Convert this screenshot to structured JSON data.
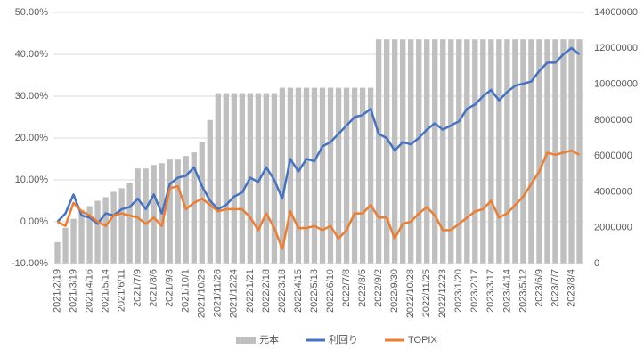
{
  "chart_data": {
    "type": "combo",
    "categories": [
      "2021/2/19",
      null,
      "2021/3/19",
      null,
      "2021/4/16",
      null,
      "2021/5/14",
      null,
      "2021/6/11",
      null,
      "2021/7/9",
      null,
      "2021/8/6",
      null,
      "2021/9/3",
      null,
      "2021/10/1",
      null,
      "2021/10/29",
      null,
      "2021/11/26",
      null,
      "2021/12/24",
      null,
      "2022/1/21",
      null,
      "2022/2/18",
      null,
      "2022/3/18",
      null,
      "2022/4/15",
      null,
      "2022/5/13",
      null,
      "2022/6/10",
      null,
      "2022/7/8",
      null,
      "2022/8/5",
      null,
      "2022/9/2",
      null,
      "2022/9/30",
      null,
      "2022/10/28",
      null,
      "2022/11/25",
      null,
      "2022/12/23",
      null,
      "2023/1/20",
      null,
      "2023/2/17",
      null,
      "2023/3/17",
      null,
      "2023/4/14",
      null,
      "2023/5/12",
      null,
      "2023/6/9",
      null,
      "2023/7/7",
      null,
      "2023/8/4",
      null
    ],
    "series": [
      {
        "name": "元本",
        "type": "bar",
        "axis": "y2",
        "color": "#bfbfbf",
        "values": [
          1200000,
          2000000,
          2500000,
          3000000,
          3200000,
          3500000,
          3700000,
          4000000,
          4200000,
          4500000,
          5300000,
          5300000,
          5500000,
          5600000,
          5800000,
          5800000,
          6000000,
          6200000,
          6800000,
          8000000,
          9500000,
          9500000,
          9500000,
          9500000,
          9500000,
          9500000,
          9500000,
          9500000,
          9800000,
          9800000,
          9800000,
          9800000,
          9800000,
          9800000,
          9800000,
          9800000,
          9800000,
          9800000,
          9800000,
          9800000,
          12500000,
          12500000,
          12500000,
          12500000,
          12500000,
          12500000,
          12500000,
          12500000,
          12500000,
          12500000,
          12500000,
          12500000,
          12500000,
          12500000,
          12500000,
          12500000,
          12500000,
          12500000,
          12500000,
          12500000,
          12500000,
          12500000,
          12500000,
          12500000,
          12500000,
          12500000
        ]
      },
      {
        "name": "利回り",
        "type": "line",
        "color": "#4472c4",
        "values": [
          0,
          2,
          6.5,
          1.5,
          1,
          -0.5,
          2,
          1.5,
          3,
          3.5,
          5.5,
          3,
          6.5,
          2,
          9,
          10.5,
          11,
          13,
          8.5,
          5,
          3,
          4,
          6,
          7,
          10.5,
          9.5,
          13,
          10,
          5.5,
          15,
          12,
          15,
          14.5,
          18,
          19,
          21,
          23,
          25,
          25.5,
          27,
          21,
          20,
          17,
          19,
          18.5,
          20,
          22,
          23.5,
          22,
          23,
          24,
          27,
          28,
          30,
          31.5,
          29,
          31,
          32.5,
          33,
          33.5,
          36,
          38,
          38,
          40,
          41.5,
          40
        ]
      },
      {
        "name": "TOPIX",
        "type": "line",
        "color": "#ed7d31",
        "values": [
          0,
          -1,
          4.5,
          2.5,
          1.5,
          0,
          -1,
          1.5,
          2,
          1.5,
          1,
          -0.5,
          1,
          -1,
          8,
          8.5,
          3,
          4.5,
          5.5,
          4,
          2.5,
          3,
          3,
          3,
          1,
          -2,
          2,
          -1.5,
          -6.5,
          2.5,
          -1.5,
          -1.5,
          -1,
          -2,
          -1,
          -4,
          -2,
          2,
          2,
          4,
          1,
          1,
          -4,
          -0.5,
          0,
          2,
          3.5,
          1.5,
          -2,
          -2,
          -0.5,
          1,
          2.5,
          3,
          5,
          1,
          2,
          4,
          6,
          9,
          12,
          16.5,
          16,
          16.5,
          17,
          16
        ]
      }
    ],
    "ylim": [
      -10,
      50
    ],
    "yticks": [
      {
        "value": -10,
        "label": "-10.00%"
      },
      {
        "value": 0,
        "label": "0.00%"
      },
      {
        "value": 10,
        "label": "10.00%"
      },
      {
        "value": 20,
        "label": "20.00%"
      },
      {
        "value": 30,
        "label": "30.00%"
      },
      {
        "value": 40,
        "label": "40.00%"
      },
      {
        "value": 50,
        "label": "50.00%"
      }
    ],
    "y2lim": [
      0,
      14000000
    ],
    "y2ticks": [
      0,
      2000000,
      4000000,
      6000000,
      8000000,
      10000000,
      12000000,
      14000000
    ],
    "grid": true,
    "legend": "bottom"
  }
}
